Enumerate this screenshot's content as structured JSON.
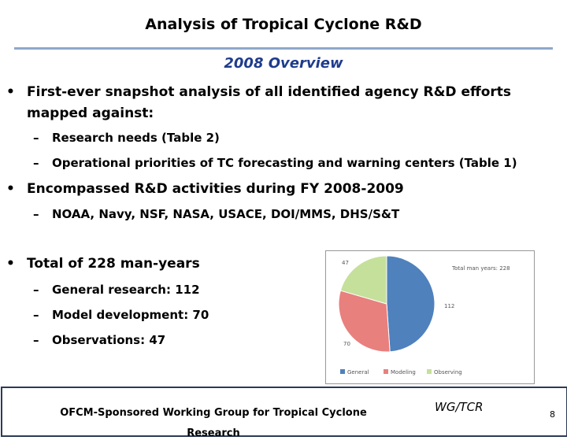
{
  "header": {
    "title": "Analysis of Tropical Cyclone R&D",
    "subtitle": "2008 Overview"
  },
  "bullets": [
    {
      "text": "First-ever snapshot analysis of all identified agency R&D efforts mapped against:",
      "subitems": [
        "Research needs (Table 2)",
        "Operational priorities of TC forecasting and warning centers (Table 1)"
      ]
    },
    {
      "text": "Encompassed R&D activities during FY 2008-2009",
      "subitems": [
        "NOAA, Navy, NSF, NASA, USACE, DOI/MMS, DHS/S&T"
      ]
    },
    {
      "text": "Total of 228 man-years",
      "subitems": [
        "General research: 112",
        "Model development: 70",
        "Observations: 47"
      ]
    }
  ],
  "chart_data": {
    "type": "pie",
    "title": "Total man years: 228",
    "categories": [
      "General",
      "Modeling",
      "Observing"
    ],
    "values": [
      112,
      70,
      47
    ],
    "colors": [
      "#4f81bd",
      "#e8807e",
      "#c5e09a"
    ]
  },
  "footer": {
    "left": "OFCM-Sponsored Working Group for Tropical Cyclone Research",
    "center": "WG/TCR",
    "page": "8"
  }
}
